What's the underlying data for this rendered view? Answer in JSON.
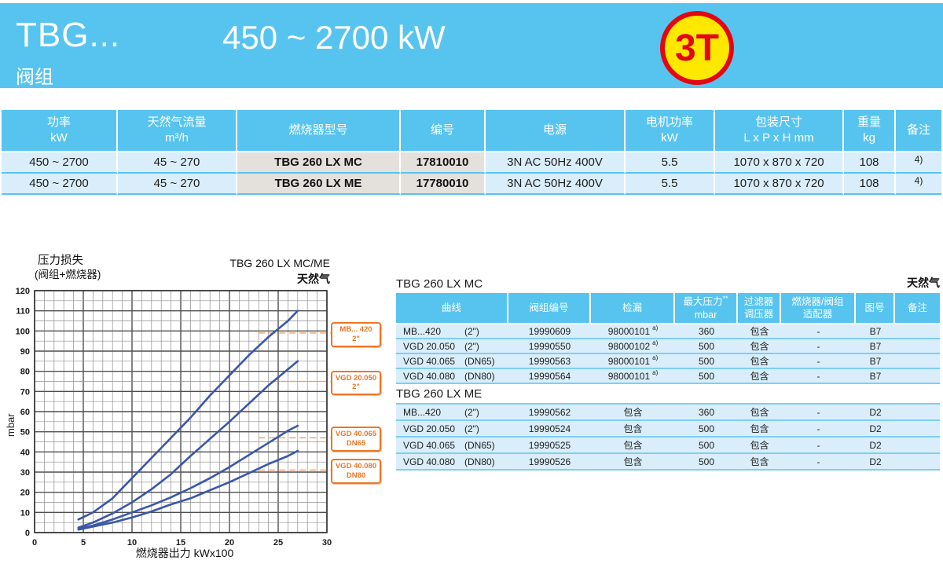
{
  "header": {
    "model": "TBG...",
    "range": "450  ~  2700 kW",
    "subtitle": "阀组",
    "badge": "3T",
    "band_color": "#57C4EF",
    "badge_fill": "#FFE800",
    "badge_border": "#E30613"
  },
  "main_table": {
    "headers": [
      {
        "l1": "功率",
        "l2": "kW"
      },
      {
        "l1": "天然气流量",
        "l2": "m³/h"
      },
      {
        "l1": "燃烧器型号",
        "l2": ""
      },
      {
        "l1": "编号",
        "l2": ""
      },
      {
        "l1": "电源",
        "l2": ""
      },
      {
        "l1": "电机功率",
        "l2": "kW"
      },
      {
        "l1": "包装尺寸",
        "l2": "L x P x H  mm"
      },
      {
        "l1": "重量",
        "l2": "kg"
      },
      {
        "l1": "备注",
        "l2": ""
      }
    ],
    "columns": [
      {
        "key": "power"
      },
      {
        "key": "flow"
      },
      {
        "key": "model",
        "cls": "grey"
      },
      {
        "key": "code",
        "cls": "grey"
      },
      {
        "key": "supply"
      },
      {
        "key": "motor"
      },
      {
        "key": "pack"
      },
      {
        "key": "weight"
      },
      {
        "key": "note",
        "type": "sup"
      }
    ],
    "rows": [
      {
        "power": "450 ~ 2700",
        "flow": "45  ~ 270",
        "model": "TBG 260 LX MC",
        "code": "17810010",
        "supply": "3N AC 50Hz 400V",
        "motor": "5.5",
        "pack": "1070 x 870 x 720",
        "weight": "108",
        "note": [
          "",
          "4)"
        ]
      },
      {
        "power": "450 ~ 2700",
        "flow": "45  ~ 270",
        "model": "TBG 260 LX ME",
        "code": "17780010",
        "supply": "3N AC 50Hz 400V",
        "motor": "5.5",
        "pack": "1070 x 870 x 720",
        "weight": "108",
        "note": [
          "",
          "4)"
        ]
      }
    ]
  },
  "chart_data": {
    "type": "line",
    "header_left1": "压力损失",
    "header_left2": "(阀组+燃烧器)",
    "title": "TBG 260 LX MC/ME",
    "gas_label": "天然气",
    "y_unit": "mbar",
    "xlabel": "燃烧器出力 kWx100",
    "xlim": [
      0,
      30
    ],
    "ylim": [
      0,
      120
    ],
    "x_major_step": 5,
    "x_minor_step": 1,
    "y_major_step": 10,
    "y_minor_step": 5,
    "grid": true,
    "series": [
      {
        "name": "MB... 420 2\"",
        "points": [
          [
            4.5,
            6.5
          ],
          [
            6,
            10
          ],
          [
            8,
            17
          ],
          [
            10,
            27
          ],
          [
            12,
            37
          ],
          [
            14,
            47
          ],
          [
            16,
            57
          ],
          [
            18,
            68
          ],
          [
            20,
            78
          ],
          [
            22,
            88
          ],
          [
            24,
            97
          ],
          [
            26,
            105
          ],
          [
            27,
            110
          ]
        ]
      },
      {
        "name": "VGD 20.050 2\"",
        "points": [
          [
            4.5,
            2.5
          ],
          [
            6,
            5
          ],
          [
            8,
            9.5
          ],
          [
            10,
            15
          ],
          [
            12,
            21.5
          ],
          [
            14,
            29
          ],
          [
            16,
            38
          ],
          [
            18,
            46.5
          ],
          [
            20,
            55
          ],
          [
            22,
            64
          ],
          [
            24,
            73
          ],
          [
            26,
            81
          ],
          [
            27,
            85
          ]
        ]
      },
      {
        "name": "VGD 40.065 DN65",
        "points": [
          [
            4.5,
            2
          ],
          [
            6,
            3.5
          ],
          [
            8,
            6.5
          ],
          [
            10,
            10
          ],
          [
            12,
            13.5
          ],
          [
            14,
            17.5
          ],
          [
            16,
            22
          ],
          [
            18,
            27
          ],
          [
            20,
            32.5
          ],
          [
            22,
            38.5
          ],
          [
            24,
            44.5
          ],
          [
            26,
            50.5
          ],
          [
            27,
            53
          ]
        ]
      },
      {
        "name": "VGD 40.080 DN80",
        "points": [
          [
            4.5,
            1.5
          ],
          [
            6,
            3
          ],
          [
            8,
            5
          ],
          [
            10,
            7.5
          ],
          [
            12,
            10.5
          ],
          [
            14,
            14
          ],
          [
            16,
            17
          ],
          [
            18,
            21
          ],
          [
            20,
            25
          ],
          [
            22,
            29.5
          ],
          [
            24,
            34
          ],
          [
            26,
            38
          ],
          [
            27,
            40.5
          ]
        ]
      }
    ],
    "curve_labels": [
      {
        "line1": "MB... 420",
        "line2": "2\"",
        "callout_y": 99
      },
      {
        "line1": "VGD 20.050",
        "line2": "2\"",
        "callout_y": 75
      },
      {
        "line1": "VGD 40.065",
        "line2": "DN65",
        "callout_y": 47
      },
      {
        "line1": "VGD 40.080",
        "line2": "DN80",
        "callout_y": 31
      }
    ],
    "colors": {
      "curve": "#3A57A8",
      "minor_grid": "#909090",
      "major_grid": "#4F4F4F",
      "label_orange": "#EE7523",
      "callout": "#F2A274"
    }
  },
  "right_tables": {
    "gas_label": "天然气",
    "headers": [
      {
        "l1": "曲线",
        "l2": ""
      },
      {
        "l1": "阀组编号",
        "l2": ""
      },
      {
        "l1": "检漏",
        "l2": ""
      },
      {
        "l1": "最大压力",
        "sup": "**",
        "l2": "mbar"
      },
      {
        "l1": "过滤器",
        "l2": "调压器"
      },
      {
        "l1": "燃烧器/阀组",
        "l2": "适配器"
      },
      {
        "l1": "图号",
        "l2": ""
      },
      {
        "l1": "备注",
        "l2": ""
      }
    ],
    "columns": [
      {
        "key": "curve",
        "type": "pair",
        "cls": "curve"
      },
      {
        "key": "code"
      },
      {
        "key": "leak",
        "type": "sup"
      },
      {
        "key": "pmax"
      },
      {
        "key": "filter"
      },
      {
        "key": "adapter"
      },
      {
        "key": "fig"
      },
      {
        "key": "note"
      }
    ],
    "mc": {
      "title": "TBG 260 LX MC",
      "rows": [
        {
          "curve": [
            "MB...420",
            "(2\")"
          ],
          "code": "19990609",
          "leak": [
            "98000101",
            "a)"
          ],
          "pmax": "360",
          "filter": "包含",
          "adapter": "-",
          "fig": "B7",
          "note": ""
        },
        {
          "curve": [
            "VGD 20.050",
            "(2\")"
          ],
          "code": "19990550",
          "leak": [
            "98000102",
            "a)"
          ],
          "pmax": "500",
          "filter": "包含",
          "adapter": "-",
          "fig": "B7",
          "note": ""
        },
        {
          "curve": [
            "VGD 40.065",
            "(DN65)"
          ],
          "code": "19990563",
          "leak": [
            "98000101",
            "a)"
          ],
          "pmax": "500",
          "filter": "包含",
          "adapter": "-",
          "fig": "B7",
          "note": ""
        },
        {
          "curve": [
            "VGD 40.080",
            "(DN80)"
          ],
          "code": "19990564",
          "leak": [
            "98000101",
            "a)"
          ],
          "pmax": "500",
          "filter": "包含",
          "adapter": "-",
          "fig": "B7",
          "note": ""
        }
      ]
    },
    "me": {
      "title": "TBG 260 LX ME",
      "rows": [
        {
          "curve": [
            "MB...420",
            "(2\")"
          ],
          "code": "19990562",
          "leak": [
            "包含",
            ""
          ],
          "pmax": "360",
          "filter": "包含",
          "adapter": "-",
          "fig": "D2",
          "note": ""
        },
        {
          "curve": [
            "VGD 20.050",
            "(2\")"
          ],
          "code": "19990524",
          "leak": [
            "包含",
            ""
          ],
          "pmax": "500",
          "filter": "包含",
          "adapter": "-",
          "fig": "D2",
          "note": ""
        },
        {
          "curve": [
            "VGD 40.065",
            "(DN65)"
          ],
          "code": "19990525",
          "leak": [
            "包含",
            ""
          ],
          "pmax": "500",
          "filter": "包含",
          "adapter": "-",
          "fig": "D2",
          "note": ""
        },
        {
          "curve": [
            "VGD 40.080",
            "(DN80)"
          ],
          "code": "19990526",
          "leak": [
            "包含",
            ""
          ],
          "pmax": "500",
          "filter": "包含",
          "adapter": "-",
          "fig": "D2",
          "note": ""
        }
      ]
    }
  }
}
